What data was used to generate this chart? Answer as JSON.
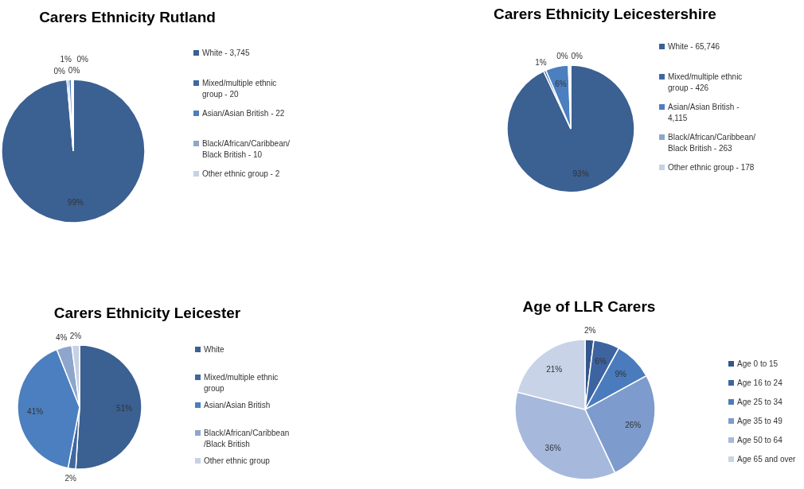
{
  "chart_data": [
    {
      "type": "pie",
      "title": "Carers Ethnicity Rutland",
      "categories": [
        "White - 3,745",
        "Mixed/multiple ethnic group - 20",
        "Asian/Asian British - 22",
        "Black/African/Caribbean/ Black British - 10",
        "Other ethnic group - 2"
      ],
      "values": [
        98.6,
        0.4,
        0.6,
        0.3,
        0.1
      ],
      "value_labels": [
        "99%",
        "0%",
        "1%",
        "0%",
        "0%"
      ],
      "colors": [
        "#3b6092",
        "#3f68a0",
        "#4b7fc0",
        "#8ea6cc",
        "#c6d1e4"
      ],
      "legend": "right"
    },
    {
      "type": "pie",
      "title": "Carers Ethnicity Leicestershire",
      "categories": [
        "White - 65,746",
        "Mixed/multiple ethnic group - 426",
        "Asian/Asian British - 4,115",
        "Black/African/Caribbean/ Black British - 263",
        "Other ethnic group - 178"
      ],
      "values": [
        93,
        0.6,
        5.8,
        0.4,
        0.2
      ],
      "value_labels": [
        "93%",
        "1%",
        "6%",
        "0%",
        "0%"
      ],
      "colors": [
        "#3b6092",
        "#3f68a0",
        "#4b7fc0",
        "#8ea6cc",
        "#c6d1e4"
      ],
      "legend": "right"
    },
    {
      "type": "pie",
      "title": "Carers Ethnicity Leicester",
      "categories": [
        "White",
        "Mixed/multiple ethnic group",
        "Asian/Asian British",
        "Black/African/Caribbean /Black British",
        "Other ethnic group"
      ],
      "values": [
        51,
        2,
        41,
        4,
        2
      ],
      "value_labels": [
        "51%",
        "2%",
        "41%",
        "4%",
        "2%"
      ],
      "colors": [
        "#3b6092",
        "#3f68a0",
        "#4b7fc0",
        "#8ea6cc",
        "#c6d1e4"
      ],
      "legend": "right"
    },
    {
      "type": "pie",
      "title": "Age of LLR Carers",
      "categories": [
        "Age 0 to 15",
        "Age 16 to 24",
        "Age 25 to 34",
        "Age 35 to 49",
        "Age 50 to 64",
        "Age 65 and over"
      ],
      "values": [
        2,
        6,
        9,
        26,
        36,
        21
      ],
      "value_labels": [
        "2%",
        "6%",
        "9%",
        "26%",
        "36%",
        "21%"
      ],
      "colors": [
        "#34568a",
        "#3d64a0",
        "#4a7bbd",
        "#7d9bcc",
        "#a6b9dd",
        "#c8d3e8"
      ],
      "legend": "right"
    }
  ]
}
